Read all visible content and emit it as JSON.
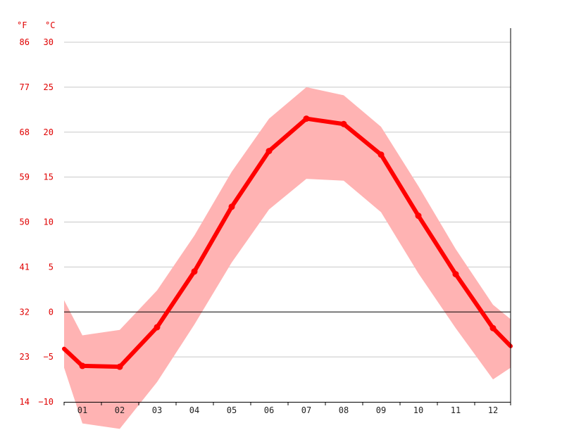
{
  "colors": {
    "line": "#ff0000",
    "band": "#ffb3b3",
    "grid": "#c8c8c8",
    "zero_line": "#000000",
    "axis_text_red": "#e00000",
    "axis_text_dark": "#222222"
  },
  "chart_data": {
    "type": "line",
    "x_tick_labels": [
      "01",
      "02",
      "03",
      "04",
      "05",
      "06",
      "07",
      "08",
      "09",
      "10",
      "11",
      "12"
    ],
    "y_unit_left": "°F",
    "y_unit_right": "°C",
    "y_ticks_c": [
      "30",
      "25",
      "20",
      "15",
      "10",
      "5",
      "0",
      "−5",
      "−10"
    ],
    "y_ticks_f": [
      "86",
      "77",
      "68",
      "59",
      "50",
      "41",
      "32",
      "23",
      "14"
    ],
    "ylim_c": [
      -10,
      30
    ],
    "grid": true,
    "series": [
      {
        "values": [
          -6.0,
          -6.1,
          -1.7,
          4.5,
          11.7,
          17.9,
          21.5,
          20.9,
          17.5,
          10.7,
          4.2,
          -1.8
        ]
      }
    ],
    "band": {
      "lower": [
        -12.4,
        -13.0,
        -7.8,
        -1.4,
        5.5,
        11.4,
        14.8,
        14.6,
        11.1,
        4.3,
        -1.8,
        -7.5
      ],
      "upper": [
        -2.6,
        -2.0,
        2.4,
        8.5,
        15.6,
        21.5,
        25.0,
        24.1,
        20.6,
        14.0,
        7.0,
        0.8
      ]
    },
    "edges": {
      "left": {
        "value": -4.1,
        "lower": -6.2,
        "upper": 1.3
      },
      "right": {
        "value": -3.8,
        "lower": -6.2,
        "upper": -0.8
      }
    }
  }
}
